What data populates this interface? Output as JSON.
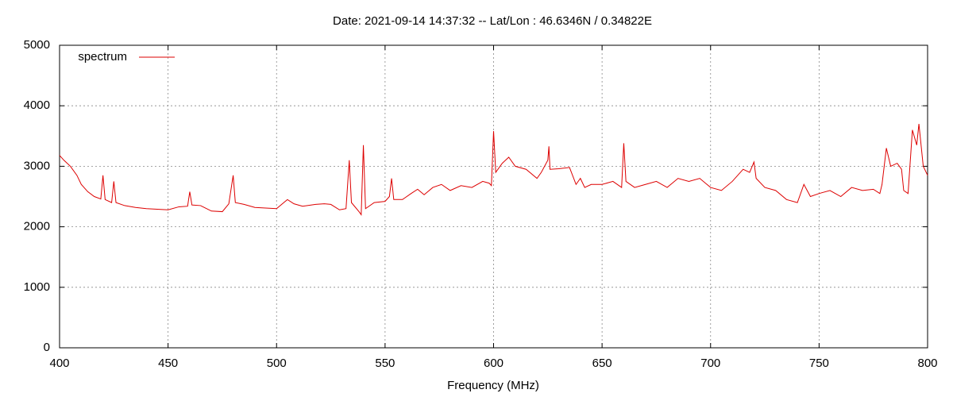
{
  "chart_data": {
    "type": "line",
    "title": "Date: 2021-09-14 14:37:32  --  Lat/Lon : 46.6346N / 0.34822E",
    "x_label": "Frequency (MHz)",
    "xlim": [
      400,
      800
    ],
    "xticks": [
      400,
      450,
      500,
      550,
      600,
      650,
      700,
      750,
      800
    ],
    "ylim": [
      0,
      5000
    ],
    "yticks": [
      0,
      1000,
      2000,
      3000,
      4000,
      5000
    ],
    "grid": true,
    "legend": "top-left",
    "x": [
      400,
      402,
      405,
      408,
      410,
      413,
      416,
      419,
      420,
      421,
      424,
      425,
      426,
      430,
      435,
      440,
      445,
      450,
      455,
      459,
      460,
      461,
      465,
      470,
      475,
      478,
      480,
      481,
      485,
      490,
      495,
      500,
      505,
      508,
      512,
      518,
      522,
      525,
      529,
      532,
      533.5,
      534.5,
      538,
      539,
      540,
      541,
      545,
      550,
      552,
      553,
      554,
      558,
      562,
      565,
      568,
      572,
      576,
      580,
      585,
      590,
      595,
      598,
      599,
      600,
      601,
      604,
      607,
      610,
      615,
      620,
      622,
      625,
      625.5,
      626,
      630,
      635,
      638,
      640,
      642,
      645,
      650,
      655,
      659,
      660,
      661,
      665,
      670,
      675,
      680,
      685,
      690,
      695,
      700,
      705,
      710,
      715,
      718,
      720,
      721,
      725,
      730,
      735,
      740,
      743,
      746,
      750,
      755,
      760,
      765,
      770,
      775,
      778,
      779,
      781,
      783,
      786,
      788,
      789,
      791,
      793,
      795,
      796,
      798,
      800
    ],
    "series": [
      {
        "name": "spectrum",
        "color": "#dd0000",
        "values": [
          3180,
          3100,
          3000,
          2850,
          2700,
          2580,
          2500,
          2460,
          2850,
          2450,
          2400,
          2750,
          2400,
          2350,
          2320,
          2300,
          2290,
          2280,
          2330,
          2340,
          2580,
          2360,
          2350,
          2260,
          2250,
          2380,
          2850,
          2400,
          2370,
          2320,
          2310,
          2300,
          2450,
          2380,
          2340,
          2370,
          2380,
          2370,
          2280,
          2300,
          3100,
          2400,
          2250,
          2200,
          3350,
          2300,
          2400,
          2420,
          2500,
          2800,
          2450,
          2450,
          2550,
          2620,
          2530,
          2650,
          2700,
          2600,
          2680,
          2650,
          2750,
          2720,
          2680,
          3580,
          2900,
          3050,
          3150,
          3000,
          2950,
          2800,
          2900,
          3100,
          3330,
          2950,
          2960,
          2980,
          2700,
          2800,
          2650,
          2700,
          2700,
          2750,
          2650,
          3380,
          2750,
          2650,
          2700,
          2750,
          2650,
          2800,
          2750,
          2800,
          2650,
          2600,
          2750,
          2950,
          2900,
          3070,
          2800,
          2650,
          2600,
          2450,
          2400,
          2700,
          2500,
          2550,
          2600,
          2500,
          2650,
          2600,
          2620,
          2550,
          2700,
          3300,
          3000,
          3050,
          2950,
          2600,
          2550,
          3600,
          3350,
          3700,
          3000,
          2850
        ]
      }
    ]
  }
}
